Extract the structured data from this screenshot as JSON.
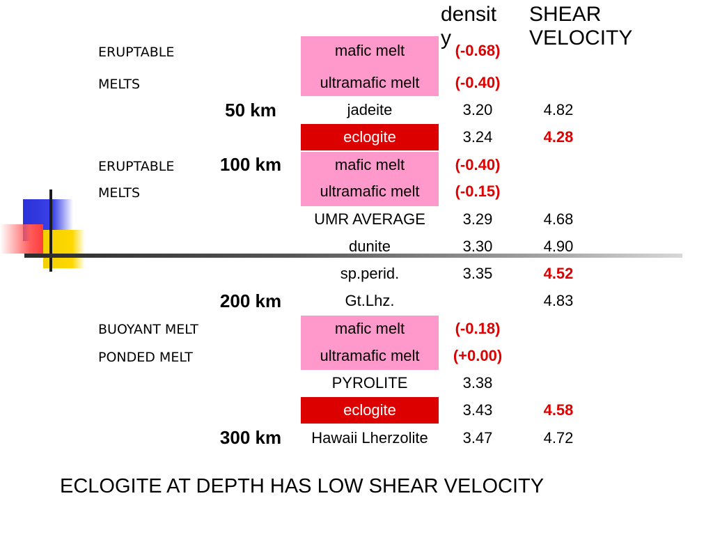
{
  "header": {
    "density_label": "densit y",
    "shear_label": "SHEAR VELOCITY"
  },
  "notes": {
    "eruptable1": "ERUPTABLE",
    "melts1": "MELTS",
    "eruptable2": "ERUPTABLE",
    "melts2": "MELTS",
    "buoyant": "BUOYANT MELT",
    "ponded": "PONDED MELT"
  },
  "depths": {
    "d50": "50 km",
    "d100": "100 km",
    "d200": "200 km",
    "d300": "300 km"
  },
  "rows": [
    {
      "mineral": "mafic melt",
      "density": "(-0.68)",
      "shear": ""
    },
    {
      "mineral": "ultramafic melt",
      "density": "(-0.40)",
      "shear": ""
    },
    {
      "mineral": "jadeite",
      "density": "3.20",
      "shear": "4.82"
    },
    {
      "mineral": "eclogite",
      "density": "3.24",
      "shear": "4.28"
    },
    {
      "mineral": "mafic melt",
      "density": "(-0.40)",
      "shear": ""
    },
    {
      "mineral": "ultramafic melt",
      "density": "(-0.15)",
      "shear": ""
    },
    {
      "mineral": "UMR AVERAGE",
      "density": "3.29",
      "shear": "4.68"
    },
    {
      "mineral": "dunite",
      "density": "3.30",
      "shear": "4.90"
    },
    {
      "mineral": "sp.perid.",
      "density": "3.35",
      "shear": "4.52"
    },
    {
      "mineral": "Gt.Lhz.",
      "density": "",
      "shear": "4.83"
    },
    {
      "mineral": "mafic melt",
      "density": "(-0.18)",
      "shear": ""
    },
    {
      "mineral": "ultramafic melt",
      "density": "(+0.00)",
      "shear": ""
    },
    {
      "mineral": "PYROLITE",
      "density": "3.38",
      "shear": ""
    },
    {
      "mineral": "eclogite",
      "density": "3.43",
      "shear": "4.58"
    },
    {
      "mineral": "Hawaii Lherzolite",
      "density": "3.47",
      "shear": "4.72"
    }
  ],
  "footer": "ECLOGITE AT DEPTH HAS LOW SHEAR VELOCITY",
  "colors": {
    "pink": "#ff99cc",
    "red": "#dd0000"
  }
}
